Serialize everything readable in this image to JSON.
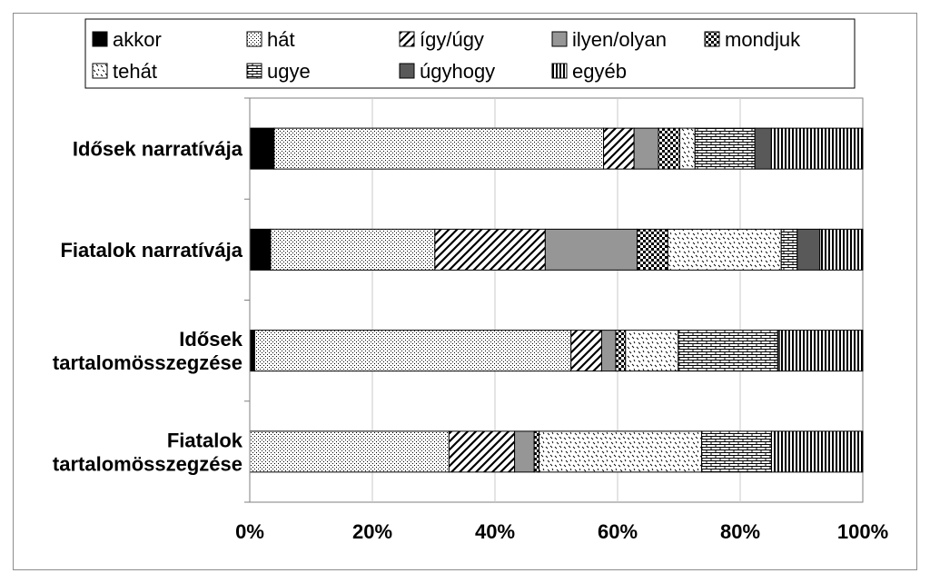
{
  "chart_data": {
    "type": "bar",
    "orientation": "horizontal",
    "stacked": "percent",
    "categories": [
      [
        "Idősek narratívája"
      ],
      [
        "Fiatalok narratívája"
      ],
      [
        "Idősek",
        "tartalomösszegzése"
      ],
      [
        "Fiatalok",
        "tartalomösszegzése"
      ]
    ],
    "series": [
      {
        "name": "akkor",
        "pattern": "solid-black",
        "values": [
          4,
          3.4,
          0.8,
          0
        ]
      },
      {
        "name": "hát",
        "pattern": "fine-dots",
        "values": [
          54,
          26.8,
          51.6,
          32.5
        ]
      },
      {
        "name": "így/úgy",
        "pattern": "diagonal-lines",
        "values": [
          5,
          18,
          5,
          10.7
        ]
      },
      {
        "name": "ilyen/olyan",
        "pattern": "solid-gray",
        "values": [
          4,
          15,
          2.3,
          3.2
        ]
      },
      {
        "name": "mondjuk",
        "pattern": "checker",
        "values": [
          3.5,
          5,
          1.6,
          0.8
        ]
      },
      {
        "name": "tehát",
        "pattern": "sparse-dashes",
        "values": [
          2.5,
          18.5,
          8.6,
          26.5
        ]
      },
      {
        "name": "ugye",
        "pattern": "brick",
        "values": [
          9.8,
          2.6,
          16.2,
          11.4
        ]
      },
      {
        "name": "úgyhogy",
        "pattern": "solid-dark-gray",
        "values": [
          2.7,
          3.7,
          0.3,
          0
        ]
      },
      {
        "name": "egyéb",
        "pattern": "vertical-lines",
        "values": [
          15,
          7,
          13.6,
          14.9
        ]
      }
    ],
    "x_ticks": [
      "0%",
      "20%",
      "40%",
      "60%",
      "80%",
      "100%"
    ],
    "xlim": [
      0,
      100
    ],
    "grid": true,
    "legend_position": "top",
    "title": "",
    "xlabel": "",
    "ylabel": ""
  }
}
